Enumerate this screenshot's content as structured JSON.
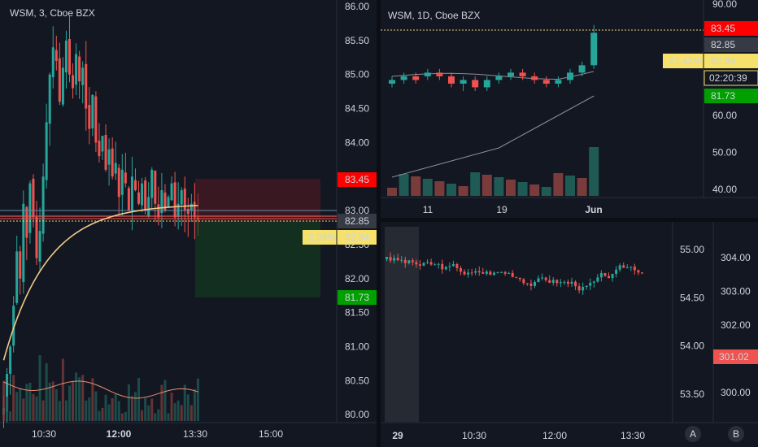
{
  "charts": [
    {
      "id": "intraday-3min",
      "title": "WSM, 3, Cboe BZX",
      "price_axis": [
        "86.00",
        "85.50",
        "85.00",
        "84.50",
        "84.00",
        "83.50",
        "83.00",
        "82.50",
        "82.00",
        "81.50",
        "81.00",
        "80.50",
        "80.00"
      ],
      "time_axis": [
        "10:30",
        "12:00",
        "13:30",
        "15:00"
      ],
      "badges": {
        "target": "83.45",
        "current": "82.85",
        "entry": "82.84",
        "entry_pct": "2.59%",
        "stop": "81.73"
      },
      "colors": {
        "up": "#26a69a",
        "down": "#ef5350",
        "vwap": "#f0c987",
        "target": "#ff0000",
        "stop": "#00a000"
      }
    },
    {
      "id": "daily",
      "title": "WSM, 1D, Cboe BZX",
      "price_axis": [
        "90.00",
        "80.00",
        "70.00",
        "60.00",
        "50.00",
        "40.00"
      ],
      "time_axis": [
        "11",
        "19",
        "Jun"
      ],
      "badges": {
        "target": "83.45",
        "current": "82.85",
        "entry": "82.84",
        "entry_pct": "27.43%",
        "countdown": "02:20:39",
        "stop": "81.73"
      }
    },
    {
      "id": "dual-axis",
      "price_axis_left": [
        "55.00",
        "54.50",
        "54.00",
        "53.50"
      ],
      "price_axis_right": [
        "304.00",
        "303.00",
        "302.00",
        "301.00",
        "300.00"
      ],
      "time_axis": [
        "29",
        "10:30",
        "12:00",
        "13:30"
      ],
      "badges": {
        "current": "301.02"
      },
      "scale_buttons": [
        "A",
        "B"
      ]
    }
  ]
}
